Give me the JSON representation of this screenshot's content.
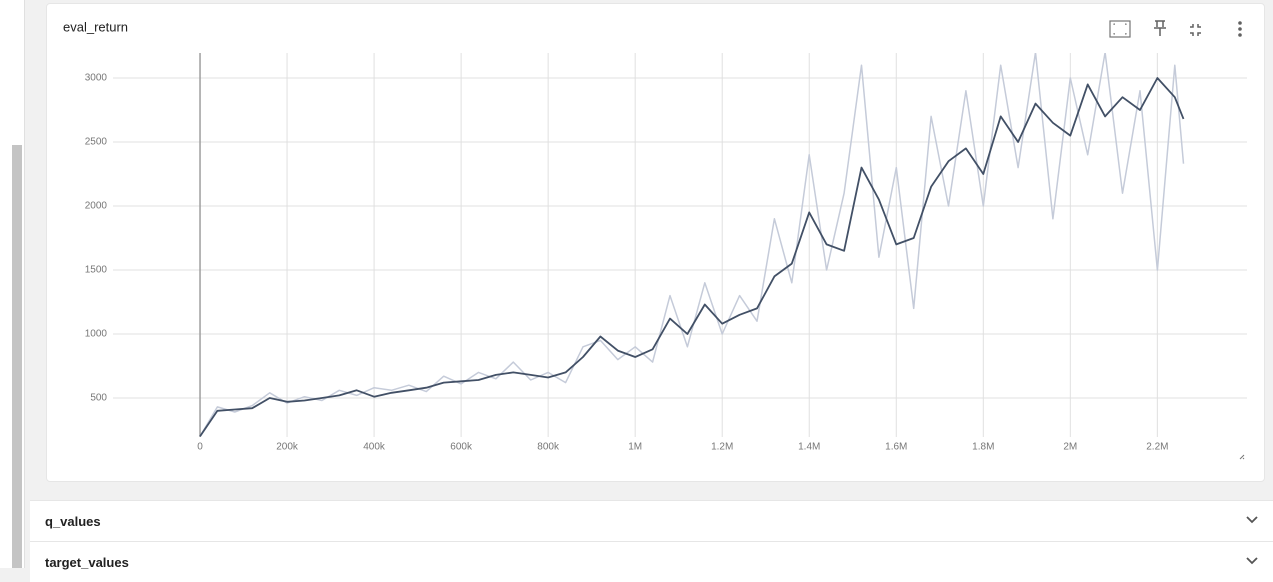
{
  "chart_data": {
    "type": "line",
    "title": "eval_return",
    "x": [
      0,
      40000,
      80000,
      120000,
      160000,
      200000,
      240000,
      280000,
      320000,
      360000,
      400000,
      440000,
      480000,
      520000,
      560000,
      600000,
      640000,
      680000,
      720000,
      760000,
      800000,
      840000,
      880000,
      920000,
      960000,
      1000000,
      1040000,
      1080000,
      1120000,
      1160000,
      1200000,
      1240000,
      1280000,
      1320000,
      1360000,
      1400000,
      1440000,
      1480000,
      1520000,
      1560000,
      1600000,
      1640000,
      1680000,
      1720000,
      1760000,
      1800000,
      1840000,
      1880000,
      1920000,
      1960000,
      2000000,
      2040000,
      2080000,
      2120000,
      2160000,
      2200000,
      2240000,
      2260000
    ],
    "series": [
      {
        "color": "#c5cbd9",
        "values": [
          200,
          430,
          390,
          440,
          540,
          460,
          510,
          480,
          560,
          520,
          580,
          560,
          600,
          550,
          670,
          610,
          700,
          650,
          780,
          640,
          700,
          620,
          900,
          950,
          800,
          900,
          780,
          1300,
          900,
          1400,
          1000,
          1300,
          1100,
          1900,
          1400,
          2400,
          1500,
          2100,
          3100,
          1600,
          2300,
          1200,
          2700,
          2000,
          2900,
          2000,
          3100,
          2300,
          3200,
          1900,
          3000,
          2400,
          3200,
          2100,
          2900,
          1500,
          3100,
          2330
        ]
      },
      {
        "color": "#425066",
        "values": [
          200,
          400,
          410,
          420,
          500,
          470,
          480,
          500,
          520,
          560,
          510,
          540,
          560,
          580,
          620,
          630,
          640,
          680,
          700,
          680,
          660,
          700,
          820,
          980,
          870,
          820,
          880,
          1120,
          1000,
          1230,
          1080,
          1150,
          1200,
          1450,
          1550,
          1950,
          1700,
          1650,
          2300,
          2050,
          1700,
          1750,
          2150,
          2350,
          2450,
          2250,
          2700,
          2500,
          2800,
          2650,
          2550,
          2950,
          2700,
          2850,
          2750,
          3000,
          2850,
          2680
        ]
      }
    ],
    "xlim": [
      -200000,
      2406000
    ],
    "ylim": [
      195,
      3195
    ],
    "xticks": [
      0,
      {
        "value": 200000,
        "label": "200k"
      },
      {
        "value": 400000,
        "label": "400k"
      },
      {
        "value": 600000,
        "label": "600k"
      },
      {
        "value": 800000,
        "label": "800k"
      },
      {
        "value": 1000000,
        "label": "1M"
      },
      {
        "value": 1200000,
        "label": "1.2M"
      },
      {
        "value": 1400000,
        "label": "1.4M"
      },
      {
        "value": 1600000,
        "label": "1.6M"
      },
      {
        "value": 1800000,
        "label": "1.8M"
      },
      {
        "value": 2000000,
        "label": "2M"
      },
      {
        "value": 2200000,
        "label": "2.2M"
      }
    ],
    "yticks": [
      500,
      1000,
      1500,
      2000,
      2500,
      3000
    ],
    "grid": true
  },
  "sections": [
    "q_values",
    "target_values"
  ]
}
